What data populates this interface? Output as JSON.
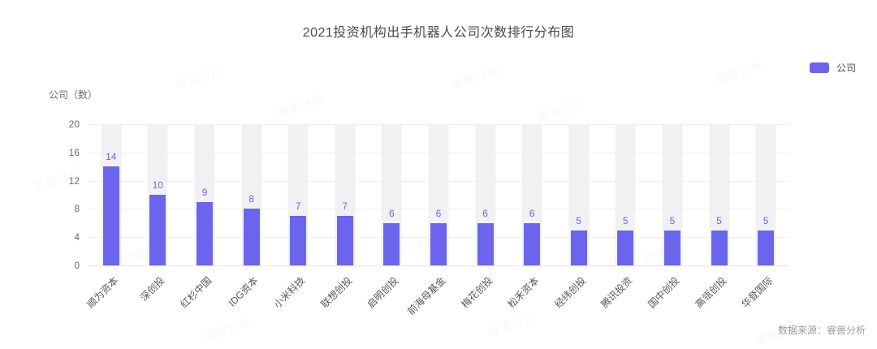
{
  "title": "2021投资机构出手机器人公司次数排行分布图",
  "legend": {
    "items": [
      {
        "label": "公司",
        "color": "#6a65ec"
      }
    ]
  },
  "source_note": "数据来源：睿兽分析",
  "watermark_text": "睿兽分析",
  "chart_data": {
    "type": "bar",
    "title": "2021投资机构出手机器人公司次数排行分布图",
    "xlabel": "",
    "ylabel": "公司（数）",
    "categories": [
      "顺为资本",
      "深创投",
      "红杉中国",
      "IDG资本",
      "小米科技",
      "联想创投",
      "启明创投",
      "前海母基金",
      "梅花创投",
      "松禾资本",
      "经纬创投",
      "腾讯投资",
      "国中创投",
      "高瓴创投",
      "华登国际"
    ],
    "series": [
      {
        "name": "公司",
        "values": [
          14,
          10,
          9,
          8,
          7,
          7,
          6,
          6,
          6,
          6,
          5,
          5,
          5,
          5,
          5
        ],
        "color": "#6a65ec"
      }
    ],
    "ylim": [
      0,
      20
    ],
    "yticks": [
      0,
      4,
      8,
      12,
      16,
      20
    ],
    "grid": true,
    "value_labels": true,
    "bar_background_color": "#f1f1f4",
    "legend_position": "top-right"
  }
}
